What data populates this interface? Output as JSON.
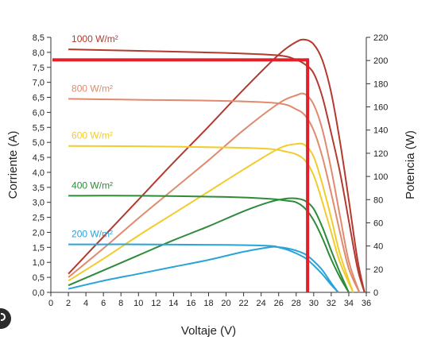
{
  "chart_data": {
    "type": "line",
    "title": "",
    "xlabel": "Voltaje (V)",
    "ylabel_left": "Corriente (A)",
    "ylabel_right": "Potencia (W)",
    "xlim": [
      0,
      36
    ],
    "ylim_left": [
      0,
      8.5
    ],
    "ylim_right": [
      0,
      220
    ],
    "x_ticks": [
      "0",
      "2",
      "4",
      "6",
      "8",
      "10",
      "12",
      "14",
      "16",
      "18",
      "20",
      "22",
      "24",
      "26",
      "28",
      "30",
      "32",
      "34",
      "36"
    ],
    "y_left_ticks": [
      "0,0",
      "0,5",
      "1,0",
      "1,5",
      "2,0",
      "2,5",
      "3,0",
      "3,5",
      "4,0",
      "4,5",
      "5,0",
      "5,5",
      "6,0",
      "6,5",
      "7,0",
      "7,5",
      "8,0",
      "8,5"
    ],
    "y_right_ticks": [
      "0",
      "20",
      "40",
      "60",
      "80",
      "100",
      "120",
      "140",
      "160",
      "180",
      "200",
      "220"
    ],
    "grid": false,
    "series": [
      {
        "name": "1000 W/m²",
        "color": "#b33a2e",
        "current": {
          "x": [
            2,
            10,
            20,
            26,
            28,
            29,
            30,
            31,
            32,
            33,
            34,
            35,
            35.8
          ],
          "y": [
            8.1,
            8.05,
            7.98,
            7.9,
            7.75,
            7.6,
            7.3,
            6.5,
            5.3,
            4.0,
            2.4,
            0.8,
            0
          ]
        },
        "power": {
          "x": [
            2,
            6,
            10,
            14,
            18,
            22,
            26,
            28,
            29,
            30,
            31,
            32,
            33,
            34,
            35,
            35.8
          ],
          "y": [
            16,
            48,
            80,
            112,
            143,
            175,
            205,
            216,
            218,
            214,
            200,
            172,
            130,
            80,
            28,
            0
          ]
        }
      },
      {
        "name": "800 W/m²",
        "color": "#e08a6e",
        "current": {
          "x": [
            2,
            10,
            20,
            26,
            28,
            29,
            30,
            31,
            32,
            33,
            34,
            35.2
          ],
          "y": [
            6.45,
            6.42,
            6.38,
            6.3,
            6.1,
            5.9,
            5.4,
            4.5,
            3.3,
            2.0,
            0.8,
            0
          ]
        },
        "power": {
          "x": [
            2,
            6,
            10,
            14,
            18,
            22,
            26,
            28,
            29,
            30,
            31,
            32,
            33,
            34,
            35.2
          ],
          "y": [
            13,
            38,
            64,
            89,
            114,
            140,
            163,
            170,
            171,
            162,
            140,
            106,
            66,
            27,
            0
          ]
        }
      },
      {
        "name": "600 W/m²",
        "color": "#f2cc2c",
        "current": {
          "x": [
            2,
            10,
            20,
            25,
            27,
            28,
            29,
            30,
            31,
            32,
            33,
            34.5
          ],
          "y": [
            4.88,
            4.87,
            4.83,
            4.78,
            4.68,
            4.6,
            4.4,
            3.9,
            3.0,
            2.0,
            1.0,
            0
          ]
        },
        "power": {
          "x": [
            2,
            6,
            10,
            14,
            18,
            22,
            26,
            28,
            29,
            30,
            31,
            32,
            33,
            34.5
          ],
          "y": [
            10,
            29,
            49,
            68,
            87,
            106,
            124,
            128,
            127,
            117,
            93,
            64,
            33,
            0
          ]
        }
      },
      {
        "name": "400 W/m²",
        "color": "#2e8b3a",
        "current": {
          "x": [
            2,
            10,
            20,
            25,
            27,
            28,
            29,
            30,
            31,
            32,
            33,
            34
          ],
          "y": [
            3.22,
            3.22,
            3.18,
            3.12,
            3.05,
            3.0,
            2.8,
            2.4,
            1.8,
            1.1,
            0.5,
            0
          ]
        },
        "power": {
          "x": [
            2,
            6,
            10,
            14,
            18,
            22,
            25,
            27,
            28,
            29,
            30,
            31,
            32,
            33,
            34
          ],
          "y": [
            6,
            19,
            32,
            45,
            57,
            70,
            78,
            81,
            81,
            79,
            72,
            56,
            36,
            17,
            0
          ]
        }
      },
      {
        "name": "200 W/m²",
        "color": "#29a3d9",
        "current": {
          "x": [
            2,
            10,
            20,
            25,
            26,
            27,
            28,
            29,
            30,
            31,
            32,
            32.8
          ],
          "y": [
            1.6,
            1.6,
            1.58,
            1.55,
            1.5,
            1.42,
            1.3,
            1.15,
            0.9,
            0.6,
            0.25,
            0
          ]
        },
        "power": {
          "x": [
            2,
            6,
            10,
            14,
            18,
            22,
            25,
            26,
            27,
            28,
            29,
            30,
            31,
            32,
            32.8
          ],
          "y": [
            3,
            10,
            16,
            22,
            28,
            35,
            39,
            39,
            38,
            36,
            33,
            27,
            19,
            8,
            0
          ]
        }
      }
    ],
    "annotation": {
      "color": "#e0212b",
      "voltage": 29.3,
      "current": 7.75
    }
  }
}
